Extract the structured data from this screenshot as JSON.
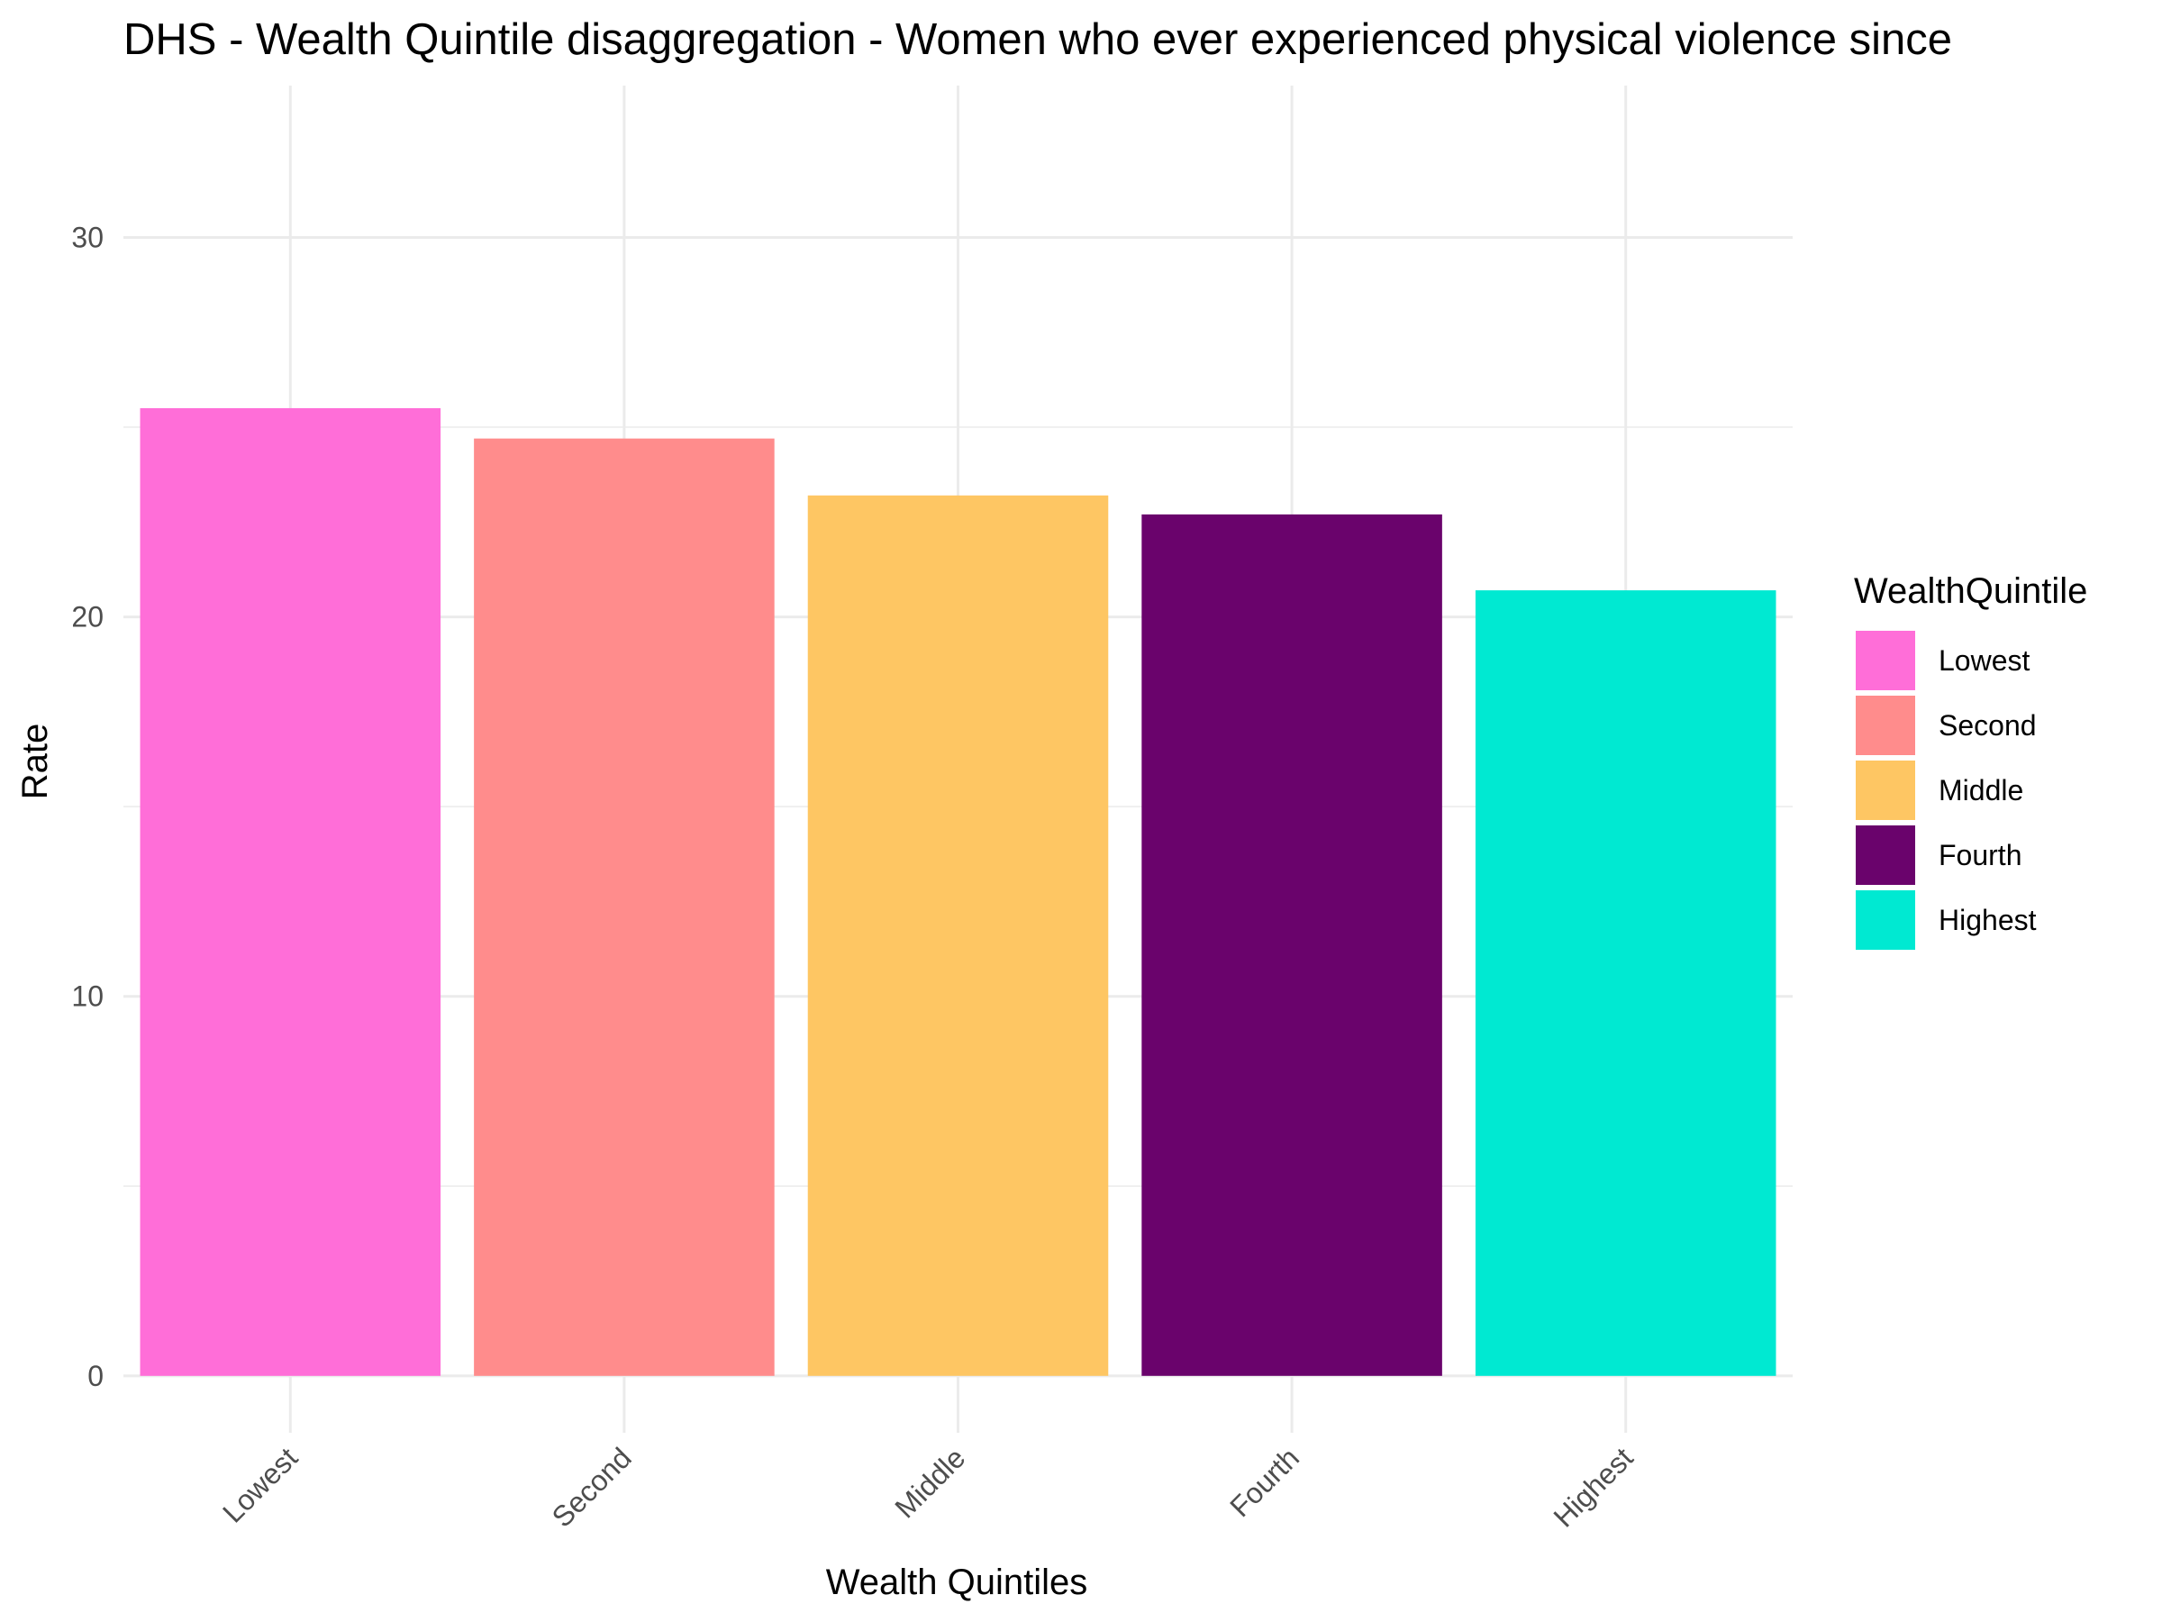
{
  "chart_data": {
    "type": "bar",
    "title": "DHS - Wealth Quintile disaggregation - Women who ever experienced physical violence since",
    "xlabel": "Wealth Quintiles",
    "ylabel": "Rate",
    "categories": [
      "Lowest",
      "Second",
      "Middle",
      "Fourth",
      "Highest"
    ],
    "values": [
      25.5,
      24.7,
      23.2,
      22.7,
      20.7
    ],
    "colors": [
      "#ff6ed8",
      "#ff8c8c",
      "#fec663",
      "#6a036c",
      "#00e9d2"
    ],
    "ylim": [
      -1.5,
      34
    ],
    "yticks": [
      0,
      10,
      20,
      30
    ],
    "yminor": [
      5,
      15,
      25
    ],
    "grid": true,
    "legend": {
      "title": "WealthQuintile",
      "placement": "right",
      "items": [
        "Lowest",
        "Second",
        "Middle",
        "Fourth",
        "Highest"
      ]
    }
  }
}
